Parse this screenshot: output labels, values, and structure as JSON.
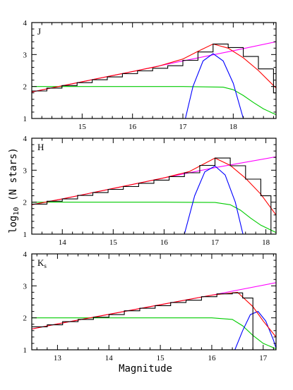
{
  "chart_data": [
    {
      "type": "line",
      "panel_label": "J",
      "band": "J",
      "xlim": [
        14.0,
        18.85
      ],
      "ylim": [
        1,
        4
      ],
      "xticks": [
        15,
        16,
        17,
        18
      ],
      "yticks": [
        1,
        2,
        3,
        4
      ],
      "series": [
        {
          "color": "#ff00ff",
          "kind": "power-law",
          "x": [
            14.0,
            15.0,
            16.0,
            17.0,
            18.0,
            18.85
          ],
          "y": [
            1.83,
            2.15,
            2.47,
            2.8,
            3.12,
            3.4
          ]
        },
        {
          "color": "#00cc00",
          "kind": "completeness",
          "x": [
            14.0,
            15.0,
            16.0,
            17.0,
            17.8,
            18.0,
            18.2,
            18.4,
            18.6,
            18.85
          ],
          "y": [
            2.0,
            2.0,
            2.0,
            2.0,
            1.98,
            1.9,
            1.72,
            1.5,
            1.3,
            1.12
          ]
        },
        {
          "color": "#0000ff",
          "kind": "gaussian",
          "x": [
            17.05,
            17.2,
            17.4,
            17.6,
            17.8,
            18.0,
            18.2
          ],
          "y": [
            1.0,
            2.0,
            2.8,
            3.03,
            2.8,
            2.1,
            1.0
          ]
        },
        {
          "color": "#ff0000",
          "kind": "total-model",
          "x": [
            14.0,
            15.0,
            16.0,
            16.5,
            17.0,
            17.3,
            17.6,
            17.9,
            18.2,
            18.5,
            18.85
          ],
          "y": [
            1.83,
            2.15,
            2.47,
            2.63,
            2.86,
            3.1,
            3.33,
            3.2,
            2.9,
            2.5,
            1.95
          ]
        },
        {
          "color": "#000000",
          "kind": "observed-histogram",
          "x": [
            14.0,
            14.3,
            14.6,
            14.9,
            15.2,
            15.5,
            15.8,
            16.1,
            16.4,
            16.7,
            17.0,
            17.3,
            17.6,
            17.9,
            18.2,
            18.5,
            18.8
          ],
          "y": [
            1.86,
            1.95,
            2.03,
            2.12,
            2.21,
            2.3,
            2.4,
            2.49,
            2.57,
            2.65,
            2.82,
            3.08,
            3.33,
            3.22,
            2.94,
            2.55,
            1.8
          ]
        }
      ]
    },
    {
      "type": "line",
      "panel_label": "H",
      "band": "H",
      "xlim": [
        13.4,
        18.2
      ],
      "ylim": [
        1,
        4
      ],
      "xticks": [
        14,
        15,
        16,
        17,
        18
      ],
      "yticks": [
        1,
        2,
        3,
        4
      ],
      "series": [
        {
          "color": "#ff00ff",
          "kind": "power-law",
          "x": [
            13.4,
            14.0,
            15.0,
            16.0,
            17.0,
            18.2
          ],
          "y": [
            1.92,
            2.1,
            2.43,
            2.76,
            3.08,
            3.42
          ]
        },
        {
          "color": "#00cc00",
          "kind": "completeness",
          "x": [
            13.4,
            14.0,
            15.0,
            16.0,
            17.0,
            17.3,
            17.5,
            17.7,
            17.9,
            18.2
          ],
          "y": [
            2.0,
            2.0,
            2.0,
            2.0,
            1.99,
            1.92,
            1.75,
            1.5,
            1.28,
            1.05
          ]
        },
        {
          "color": "#0000ff",
          "kind": "gaussian",
          "x": [
            16.4,
            16.6,
            16.8,
            17.0,
            17.2,
            17.4,
            17.55
          ],
          "y": [
            1.0,
            2.2,
            2.95,
            3.13,
            2.85,
            2.0,
            1.0
          ]
        },
        {
          "color": "#ff0000",
          "kind": "total-model",
          "x": [
            13.4,
            14.0,
            15.0,
            16.0,
            16.5,
            17.0,
            17.3,
            17.6,
            17.9,
            18.2
          ],
          "y": [
            1.92,
            2.1,
            2.43,
            2.76,
            2.96,
            3.38,
            3.15,
            2.75,
            2.25,
            1.6
          ]
        },
        {
          "color": "#000000",
          "kind": "observed-histogram",
          "x": [
            13.4,
            13.7,
            14.0,
            14.3,
            14.6,
            14.9,
            15.2,
            15.5,
            15.8,
            16.1,
            16.4,
            16.7,
            17.0,
            17.3,
            17.6,
            17.9,
            18.1
          ],
          "y": [
            1.94,
            2.03,
            2.1,
            2.21,
            2.3,
            2.4,
            2.49,
            2.59,
            2.69,
            2.8,
            2.92,
            3.15,
            3.38,
            3.14,
            2.72,
            2.2,
            1.0
          ]
        }
      ]
    },
    {
      "type": "line",
      "panel_label": "Ks",
      "band": "Ks",
      "xlim": [
        12.5,
        17.25
      ],
      "ylim": [
        1,
        4
      ],
      "xticks": [
        13,
        14,
        15,
        16,
        17
      ],
      "yticks": [
        1,
        2,
        3,
        4
      ],
      "series": [
        {
          "color": "#ff00ff",
          "kind": "power-law",
          "x": [
            12.5,
            13.0,
            14.0,
            15.0,
            16.0,
            17.25
          ],
          "y": [
            1.65,
            1.81,
            2.11,
            2.41,
            2.71,
            3.1
          ]
        },
        {
          "color": "#00cc00",
          "kind": "completeness",
          "x": [
            12.5,
            13.0,
            14.0,
            15.0,
            16.0,
            16.4,
            16.6,
            16.8,
            17.0,
            17.25
          ],
          "y": [
            2.0,
            2.0,
            2.0,
            2.0,
            2.0,
            1.95,
            1.75,
            1.45,
            1.2,
            1.03
          ]
        },
        {
          "color": "#0000ff",
          "kind": "gaussian",
          "x": [
            16.45,
            16.6,
            16.75,
            16.9,
            17.05,
            17.2,
            17.25
          ],
          "y": [
            1.0,
            1.6,
            2.1,
            2.2,
            1.9,
            1.3,
            1.05
          ]
        },
        {
          "color": "#ff0000",
          "kind": "total-model",
          "x": [
            12.5,
            13.0,
            14.0,
            15.0,
            16.0,
            16.5,
            16.8,
            17.0,
            17.25
          ],
          "y": [
            1.65,
            1.81,
            2.11,
            2.41,
            2.71,
            2.8,
            2.35,
            1.9,
            1.4
          ]
        },
        {
          "color": "#000000",
          "kind": "observed-histogram",
          "x": [
            12.5,
            12.8,
            13.1,
            13.4,
            13.7,
            14.0,
            14.3,
            14.6,
            14.9,
            15.2,
            15.5,
            15.8,
            16.1,
            16.4,
            16.6,
            16.8
          ],
          "y": [
            1.72,
            1.78,
            1.88,
            1.95,
            2.02,
            2.1,
            2.22,
            2.3,
            2.38,
            2.48,
            2.55,
            2.66,
            2.75,
            2.78,
            2.62,
            1.0
          ]
        }
      ]
    }
  ],
  "axes": {
    "xlabel": "Magnitude",
    "ylabel": "log10 (N stars)"
  }
}
